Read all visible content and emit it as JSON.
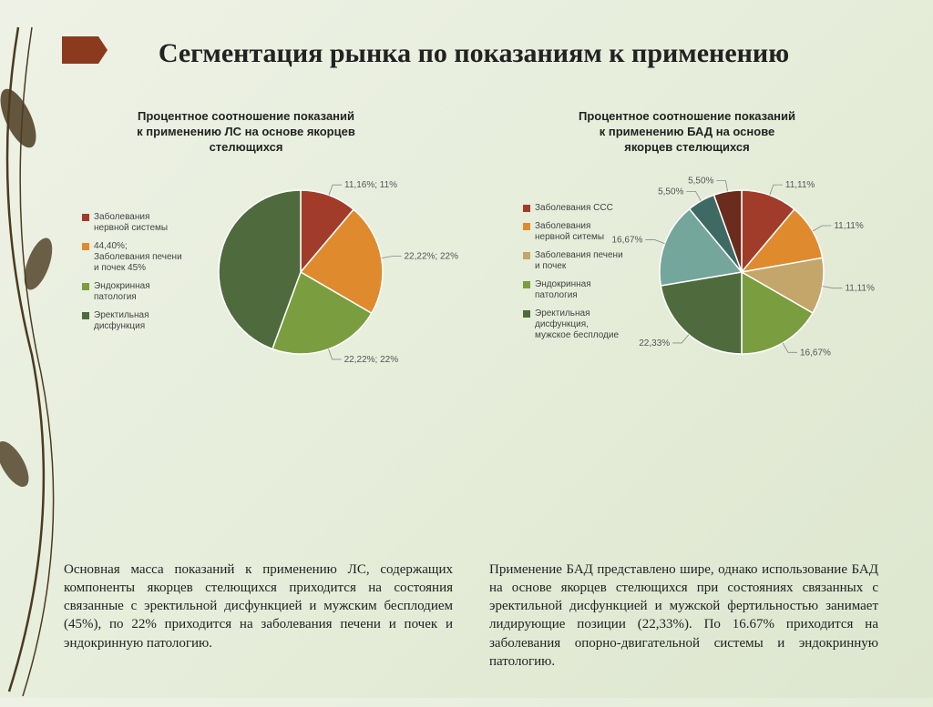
{
  "title": "Сегментация рынка по показаниям к применению",
  "marker_color": "#8b3a1e",
  "decoration_color": "#4a3b1f",
  "chart_left": {
    "subtitle": "Процентное соотношение показаний к применению ЛС на основе якорцев стелющихся",
    "type": "pie",
    "radius": 90,
    "label_fontsize": 10,
    "legend_fontsize": 10,
    "slices": [
      {
        "label": "11,16%; 11%",
        "value": 11.16,
        "color": "#a23c2a"
      },
      {
        "label": "22,22%; 22%",
        "value": 22.22,
        "color": "#e08a2e"
      },
      {
        "label": "22,22%; 22%",
        "value": 22.22,
        "color": "#7a9e3f"
      },
      {
        "label": "",
        "value": 44.4,
        "color": "#4f6b3d"
      }
    ],
    "legend": [
      {
        "text": "Заболевания нервной системы",
        "color": "#a23c2a"
      },
      {
        "text": "Заболевания печени и почек 45%",
        "prefix": "44,40%;",
        "color": "#e08a2e"
      },
      {
        "text": "Эндокринная патология",
        "color": "#7a9e3f"
      },
      {
        "text": "Эректильная дисфункция",
        "color": "#4f6b3d"
      }
    ]
  },
  "chart_right": {
    "subtitle": "Процентное соотношение показаний к применению БАД на основе якорцев стелющихся",
    "type": "pie",
    "radius": 90,
    "label_fontsize": 10,
    "legend_fontsize": 10,
    "slices": [
      {
        "label": "11,11%",
        "value": 11.11,
        "color": "#a23c2a"
      },
      {
        "label": "11,11%",
        "value": 11.11,
        "color": "#e08a2e"
      },
      {
        "label": "11,11%",
        "value": 11.11,
        "color": "#c4a56a"
      },
      {
        "label": "16,67%",
        "value": 16.67,
        "color": "#7a9e3f"
      },
      {
        "label": "22,33%",
        "value": 22.33,
        "color": "#4f6b3d"
      },
      {
        "label": "16,67%",
        "value": 16.67,
        "color": "#74a69b"
      },
      {
        "label": "5,50%",
        "value": 5.5,
        "color": "#3e6a63"
      },
      {
        "label": "5,50%",
        "value": 5.5,
        "color": "#6b2c1e"
      }
    ],
    "legend": [
      {
        "text": "Заболевания ССС",
        "color": "#a23c2a"
      },
      {
        "text": "Заболевания нервной ситемы",
        "color": "#e08a2e"
      },
      {
        "text": "Заболевания печени и почек",
        "color": "#c4a56a"
      },
      {
        "text": "Эндокринная патология",
        "color": "#7a9e3f"
      },
      {
        "text": "Эректильная дисфункция, мужское бесплодие",
        "color": "#4f6b3d"
      }
    ]
  },
  "paragraph_left": "Основная масса показаний к применению ЛС, содержащих компоненты якорцев стелющихся приходится на состояния связанные с эректильной дисфункцией и мужским бесплодием (45%), по 22% приходится на заболевания печени и почек и эндокринную патологию.",
  "paragraph_right": "Применение БАД представлено шире, однако использование БАД на основе якорцев стелющихся при состояниях связанных с эректильной дисфункцией и мужской фертильностью занимает лидирующие позиции (22,33%). По 16.67% приходится на заболевания опорно-двигательной системы и эндокринную патологию."
}
